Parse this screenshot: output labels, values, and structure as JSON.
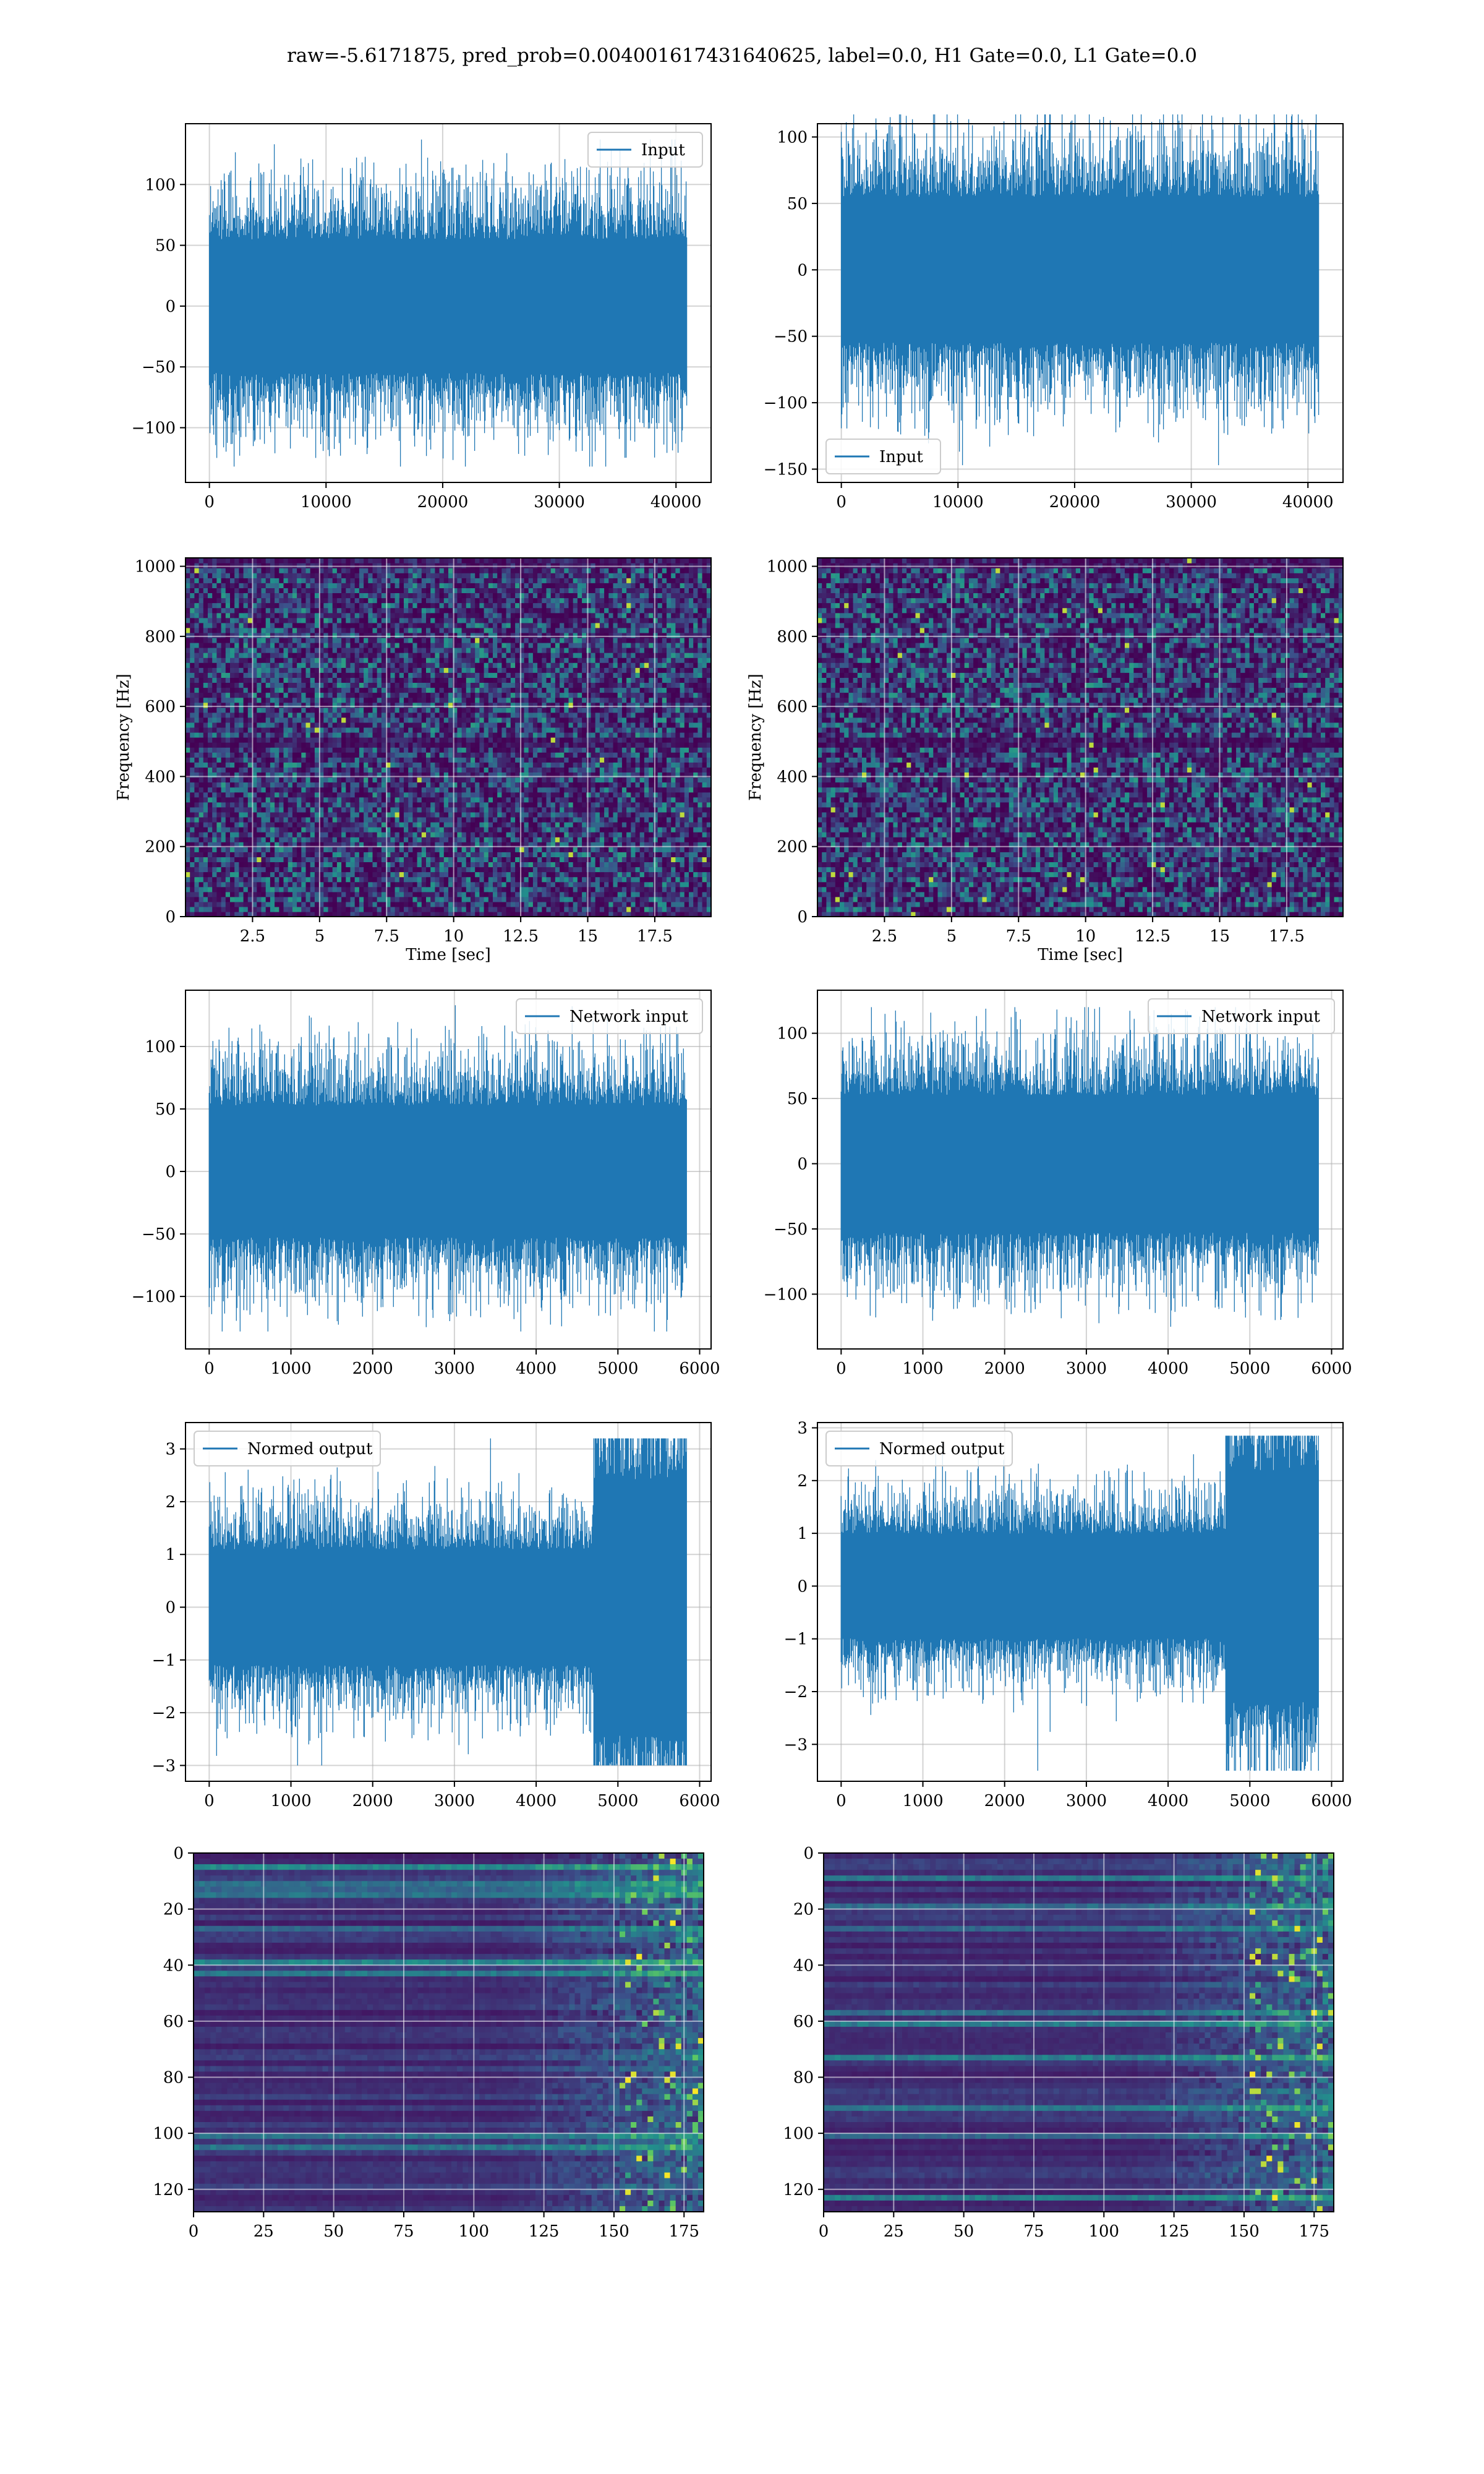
{
  "suptitle": "raw=-5.6171875, pred_prob=0.004001617431640625, label=0.0, H1 Gate=0.0, L1 Gate=0.0",
  "colors": {
    "line": "#1f77b4",
    "grid": "#b0b0b0",
    "viridis": [
      "#440154",
      "#3b528b",
      "#21918c",
      "#5ec962",
      "#fde725"
    ]
  },
  "chart_data": [
    {
      "id": "ts-input-h1",
      "type": "line",
      "series": [
        {
          "name": "Input",
          "n": 40960,
          "amplitude": 50,
          "peak_max": 137,
          "peak_min": -132
        }
      ],
      "xlim": [
        -2048,
        43008
      ],
      "ylim": [
        -145,
        150
      ],
      "xticks": [
        0,
        10000,
        20000,
        30000,
        40000
      ],
      "yticks": [
        -100,
        -50,
        0,
        50,
        100
      ],
      "legend": "top-right",
      "grid": true
    },
    {
      "id": "ts-input-l1",
      "type": "line",
      "series": [
        {
          "name": "Input",
          "n": 40960,
          "amplitude": 50,
          "peak_max": 117,
          "peak_min": -147
        }
      ],
      "xlim": [
        -2048,
        43008
      ],
      "ylim": [
        -160,
        110
      ],
      "xticks": [
        0,
        10000,
        20000,
        30000,
        40000
      ],
      "yticks": [
        -150,
        -100,
        -50,
        0,
        50,
        100
      ],
      "legend": "bottom-left",
      "grid": true
    },
    {
      "id": "spec-h1",
      "type": "heatmap",
      "xlabel": "Time [sec]",
      "ylabel": "Frequency [Hz]",
      "xlim": [
        0,
        19.6
      ],
      "ylim": [
        0,
        1024
      ],
      "xticks": [
        2.5,
        5.0,
        7.5,
        10.0,
        12.5,
        15.0,
        17.5
      ],
      "yticks": [
        0,
        200,
        400,
        600,
        800,
        1000
      ],
      "colormap": "viridis",
      "grid": true
    },
    {
      "id": "spec-l1",
      "type": "heatmap",
      "xlabel": "Time [sec]",
      "ylabel": "Frequency [Hz]",
      "xlim": [
        0,
        19.6
      ],
      "ylim": [
        0,
        1024
      ],
      "xticks": [
        2.5,
        5.0,
        7.5,
        10.0,
        12.5,
        15.0,
        17.5
      ],
      "yticks": [
        0,
        200,
        400,
        600,
        800,
        1000
      ],
      "colormap": "viridis",
      "grid": true
    },
    {
      "id": "ts-net-h1",
      "type": "line",
      "series": [
        {
          "name": "Network input",
          "n": 5850,
          "amplitude": 48,
          "peak_max": 133,
          "peak_min": -128
        }
      ],
      "xlim": [
        -290,
        6140
      ],
      "ylim": [
        -142,
        145
      ],
      "xticks": [
        0,
        1000,
        2000,
        3000,
        4000,
        5000,
        6000
      ],
      "yticks": [
        -100,
        -50,
        0,
        50,
        100
      ],
      "legend": "top-right",
      "grid": true
    },
    {
      "id": "ts-net-l1",
      "type": "line",
      "series": [
        {
          "name": "Network input",
          "n": 5850,
          "amplitude": 48,
          "peak_max": 120,
          "peak_min": -125
        }
      ],
      "xlim": [
        -290,
        6140
      ],
      "ylim": [
        -142,
        133
      ],
      "xticks": [
        0,
        1000,
        2000,
        3000,
        4000,
        5000,
        6000
      ],
      "yticks": [
        -100,
        -50,
        0,
        50,
        100
      ],
      "legend": "top-right",
      "grid": true
    },
    {
      "id": "ts-norm-h1",
      "type": "line",
      "series": [
        {
          "name": "Normed output",
          "n": 5850,
          "amplitude": 1.0,
          "burst_start": 4700,
          "burst_amplitude": 2.2,
          "peak_max": 3.2,
          "peak_min": -3.0
        }
      ],
      "xlim": [
        -290,
        6140
      ],
      "ylim": [
        -3.3,
        3.5
      ],
      "xticks": [
        0,
        1000,
        2000,
        3000,
        4000,
        5000,
        6000
      ],
      "yticks": [
        -3,
        -2,
        -1,
        0,
        1,
        2,
        3
      ],
      "legend": "top-left",
      "grid": true
    },
    {
      "id": "ts-norm-l1",
      "type": "line",
      "series": [
        {
          "name": "Normed output",
          "n": 5850,
          "amplitude": 0.9,
          "burst_start": 4700,
          "burst_amplitude": 2.0,
          "peak_max": 2.85,
          "peak_min": -3.5
        }
      ],
      "xlim": [
        -290,
        6140
      ],
      "ylim": [
        -3.7,
        3.1
      ],
      "xticks": [
        0,
        1000,
        2000,
        3000,
        4000,
        5000,
        6000
      ],
      "yticks": [
        -3,
        -2,
        -1,
        0,
        1,
        2,
        3
      ],
      "legend": "top-left",
      "grid": true
    },
    {
      "id": "feat-h1",
      "type": "heatmap",
      "xlim": [
        0,
        182
      ],
      "ylim": [
        128,
        0
      ],
      "xticks": [
        0,
        25,
        50,
        75,
        100,
        125,
        150,
        175
      ],
      "yticks": [
        0,
        20,
        40,
        60,
        80,
        100,
        120
      ],
      "colormap": "viridis",
      "grid": true
    },
    {
      "id": "feat-l1",
      "type": "heatmap",
      "xlim": [
        0,
        182
      ],
      "ylim": [
        128,
        0
      ],
      "xticks": [
        0,
        25,
        50,
        75,
        100,
        125,
        150,
        175
      ],
      "yticks": [
        0,
        20,
        40,
        60,
        80,
        100,
        120
      ],
      "colormap": "viridis",
      "grid": true
    }
  ]
}
